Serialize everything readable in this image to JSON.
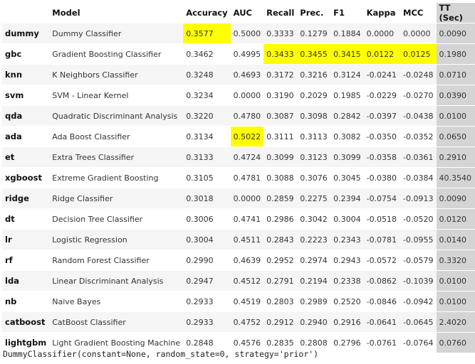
{
  "table": {
    "headers": [
      "",
      "Model",
      "Accuracy",
      "AUC",
      "Recall",
      "Prec.",
      "F1",
      "Kappa",
      "MCC",
      "TT (Sec)"
    ],
    "rows": [
      {
        "id": "dummy",
        "model": "Dummy Classifier",
        "values": [
          "0.3577",
          "0.5000",
          "0.3333",
          "0.1279",
          "0.1884",
          "0.0000",
          "0.0000",
          "0.0090"
        ],
        "highlight": [
          0
        ]
      },
      {
        "id": "gbc",
        "model": "Gradient Boosting Classifier",
        "values": [
          "0.3462",
          "0.4995",
          "0.3433",
          "0.3455",
          "0.3415",
          "0.0122",
          "0.0125",
          "0.1980"
        ],
        "highlight": [
          2,
          3,
          4,
          5,
          6
        ]
      },
      {
        "id": "knn",
        "model": "K Neighbors Classifier",
        "values": [
          "0.3248",
          "0.4693",
          "0.3172",
          "0.3216",
          "0.3124",
          "-0.0241",
          "-0.0248",
          "0.0710"
        ],
        "highlight": []
      },
      {
        "id": "svm",
        "model": "SVM - Linear Kernel",
        "values": [
          "0.3234",
          "0.0000",
          "0.3190",
          "0.2029",
          "0.1985",
          "-0.0229",
          "-0.0270",
          "0.0390"
        ],
        "highlight": []
      },
      {
        "id": "qda",
        "model": "Quadratic Discriminant Analysis",
        "values": [
          "0.3220",
          "0.4780",
          "0.3087",
          "0.3098",
          "0.2842",
          "-0.0397",
          "-0.0438",
          "0.0100"
        ],
        "highlight": []
      },
      {
        "id": "ada",
        "model": "Ada Boost Classifier",
        "values": [
          "0.3134",
          "0.5022",
          "0.3111",
          "0.3113",
          "0.3082",
          "-0.0350",
          "-0.0352",
          "0.0650"
        ],
        "highlight": [
          1
        ]
      },
      {
        "id": "et",
        "model": "Extra Trees Classifier",
        "values": [
          "0.3133",
          "0.4724",
          "0.3099",
          "0.3123",
          "0.3099",
          "-0.0358",
          "-0.0361",
          "0.2910"
        ],
        "highlight": []
      },
      {
        "id": "xgboost",
        "model": "Extreme Gradient Boosting",
        "values": [
          "0.3105",
          "0.4781",
          "0.3088",
          "0.3076",
          "0.3045",
          "-0.0380",
          "-0.0384",
          "40.3540"
        ],
        "highlight": []
      },
      {
        "id": "ridge",
        "model": "Ridge Classifier",
        "values": [
          "0.3018",
          "0.0000",
          "0.2859",
          "0.2275",
          "0.2394",
          "-0.0754",
          "-0.0913",
          "0.0090"
        ],
        "highlight": []
      },
      {
        "id": "dt",
        "model": "Decision Tree Classifier",
        "values": [
          "0.3006",
          "0.4741",
          "0.2986",
          "0.3042",
          "0.3004",
          "-0.0518",
          "-0.0520",
          "0.0120"
        ],
        "highlight": []
      },
      {
        "id": "lr",
        "model": "Logistic Regression",
        "values": [
          "0.3004",
          "0.4511",
          "0.2843",
          "0.2223",
          "0.2343",
          "-0.0781",
          "-0.0955",
          "0.0140"
        ],
        "highlight": []
      },
      {
        "id": "rf",
        "model": "Random Forest Classifier",
        "values": [
          "0.2990",
          "0.4639",
          "0.2952",
          "0.2974",
          "0.2943",
          "-0.0572",
          "-0.0579",
          "0.3320"
        ],
        "highlight": []
      },
      {
        "id": "lda",
        "model": "Linear Discriminant Analysis",
        "values": [
          "0.2947",
          "0.4512",
          "0.2791",
          "0.2194",
          "0.2338",
          "-0.0862",
          "-0.1039",
          "0.0100"
        ],
        "highlight": []
      },
      {
        "id": "nb",
        "model": "Naive Bayes",
        "values": [
          "0.2933",
          "0.4519",
          "0.2803",
          "0.2989",
          "0.2520",
          "-0.0846",
          "-0.0942",
          "0.0100"
        ],
        "highlight": []
      },
      {
        "id": "catboost",
        "model": "CatBoost Classifier",
        "values": [
          "0.2933",
          "0.4752",
          "0.2912",
          "0.2940",
          "0.2916",
          "-0.0641",
          "-0.0645",
          "2.4020"
        ],
        "highlight": []
      },
      {
        "id": "lightgbm",
        "model": "Light Gradient Boosting Machine",
        "values": [
          "0.2848",
          "0.4576",
          "0.2835",
          "0.2808",
          "0.2796",
          "-0.0761",
          "-0.0764",
          "0.0760"
        ],
        "highlight": []
      }
    ]
  },
  "output": {
    "repr": "DummyClassifier(constant=None, random_state=0, strategy='prior')"
  },
  "colors": {
    "highlight": "#ffff00",
    "tt_column": "#d4d4d4",
    "stripe": "#f5f5f5"
  }
}
